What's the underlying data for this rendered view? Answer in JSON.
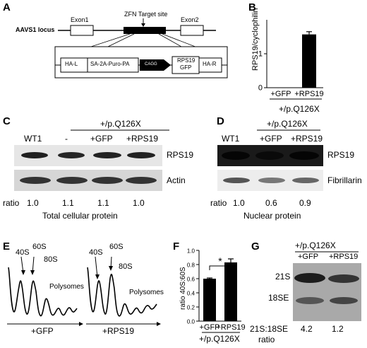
{
  "panels": {
    "A": {
      "label": "A",
      "locus": "AAVS1 locus",
      "exon1": "Exon1",
      "exon2": "Exon2",
      "zfn": "ZFN Target site",
      "ha_l": "HA-L",
      "puro": "SA-2A-Puro-PA",
      "cagg": "CAGG",
      "rps19_line1": "RPS19",
      "rps19_line2": "GFP",
      "ha_r": "HA-R"
    },
    "B": {
      "label": "B",
      "chart_data": {
        "type": "bar",
        "ylabel": "RPS19/cyclophilin",
        "categories": [
          "+GFP",
          "+RPS19"
        ],
        "values": [
          0.0,
          1.57
        ],
        "errors": [
          0.0,
          0.08
        ],
        "ylim": [
          0,
          2
        ],
        "yticks": [
          "0",
          "1"
        ],
        "group_label": "+/p.Q126X",
        "bar_color": "#000000"
      }
    },
    "C": {
      "label": "C",
      "group": "+/p.Q126X",
      "lanes": [
        "WT1",
        "-",
        "+GFP",
        "+RPS19"
      ],
      "row1": "RPS19",
      "row2": "Actin",
      "ratio_label": "ratio",
      "ratios": [
        "1.0",
        "1.1",
        "1.1",
        "1.0"
      ],
      "caption": "Total cellular protein"
    },
    "D": {
      "label": "D",
      "group": "+/p.Q126X",
      "lanes": [
        "WT1",
        "+GFP",
        "+RPS19"
      ],
      "row1": "RPS19",
      "row2": "Fibrillarin",
      "ratio_label": "ratio",
      "ratios": [
        "1.0",
        "0.6",
        "0.9"
      ],
      "caption": "Nuclear protein"
    },
    "E": {
      "label": "E",
      "left": {
        "peak1": "40S",
        "peak2": "60S",
        "peak3": "80S",
        "tail": "Polysomes",
        "axis": "+GFP"
      },
      "right": {
        "peak1": "40S",
        "peak2": "60S",
        "peak3": "80S",
        "tail": "Polysomes",
        "axis": "+RPS19"
      }
    },
    "F": {
      "label": "F",
      "chart_data": {
        "type": "bar",
        "ylabel": "ratio 40S:60S",
        "categories": [
          "+GFP",
          "+RPS19"
        ],
        "values": [
          0.6,
          0.83
        ],
        "errors": [
          0.01,
          0.05
        ],
        "ylim": [
          0,
          1.0
        ],
        "yticks": [
          "0.0",
          "0.2",
          "0.4",
          "0.6",
          "0.8",
          "1.0"
        ],
        "significance": "*",
        "group_label": "+/p.Q126X",
        "bar_color": "#000000"
      }
    },
    "G": {
      "label": "G",
      "group": "+/p.Q126X",
      "lanes": [
        "+GFP",
        "+RPS19"
      ],
      "band1": "21S",
      "band2": "18SE",
      "ratio_line1": "21S:18SE",
      "ratio_line2": "ratio",
      "ratios": [
        "4.2",
        "1.2"
      ]
    }
  }
}
